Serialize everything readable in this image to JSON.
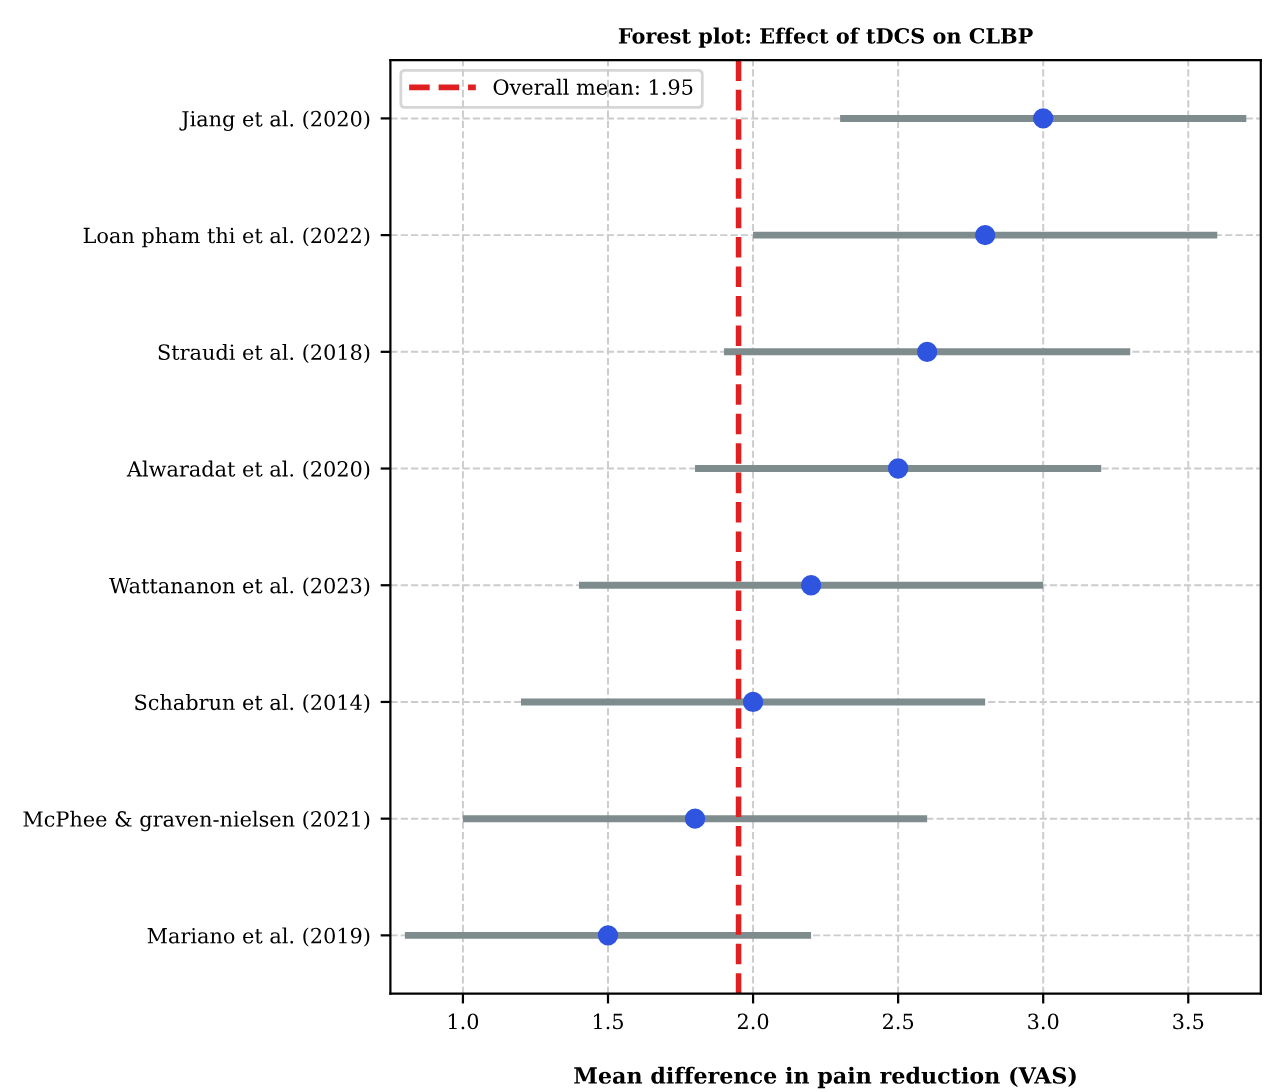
{
  "chart_data": {
    "type": "scatter",
    "orientation": "horizontal",
    "title": "Forest plot: Effect of tDCS on CLBP",
    "xlabel": "Mean difference in pain reduction (VAS)",
    "categories": [
      "Jiang et al. (2020)",
      "Loan pham thi et al. (2022)",
      "Straudi et al. (2018)",
      "Alwaradat et al. (2020)",
      "Wattananon et al. (2023)",
      "Schabrun et al. (2014)",
      "McPhee & graven-nielsen (2021)",
      "Mariano et al. (2019)"
    ],
    "values": [
      3.0,
      2.8,
      2.6,
      2.5,
      2.2,
      2.0,
      1.8,
      1.5
    ],
    "errors": [
      [
        2.3,
        3.7
      ],
      [
        2.0,
        3.6
      ],
      [
        1.9,
        3.3
      ],
      [
        1.8,
        3.2
      ],
      [
        1.4,
        3.0
      ],
      [
        1.2,
        2.8
      ],
      [
        1.0,
        2.6
      ],
      [
        0.8,
        2.2
      ]
    ],
    "color": "#2f55e0",
    "marker": "circle",
    "xlim": [
      0.75,
      3.75
    ],
    "xticks": [
      {
        "value": 1.0,
        "label": "1.0"
      },
      {
        "value": 1.5,
        "label": "1.5"
      },
      {
        "value": 2.0,
        "label": "2.0"
      },
      {
        "value": 2.5,
        "label": "2.5"
      },
      {
        "value": 3.0,
        "label": "3.0"
      },
      {
        "value": 3.5,
        "label": "3.5"
      }
    ],
    "ref_lines": [
      {
        "axis": "x",
        "value": 1.95,
        "label": "Overall mean: 1.95",
        "color": "#e02020",
        "line_style": "dashed"
      }
    ],
    "grid": true,
    "legend": "top left"
  }
}
